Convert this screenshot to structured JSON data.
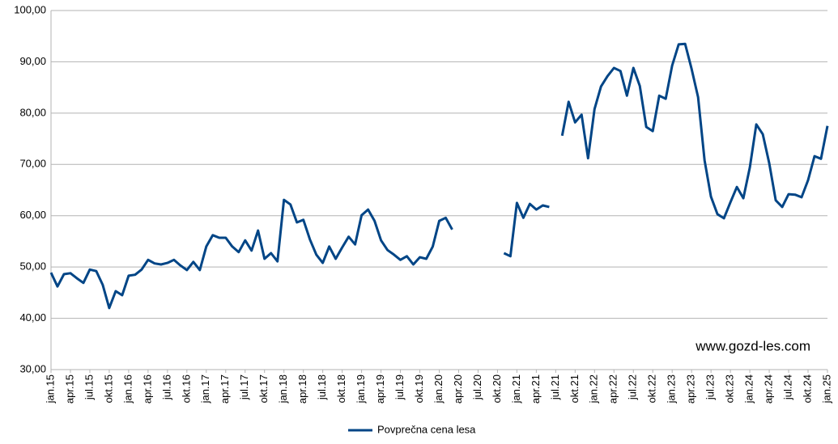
{
  "chart_data": {
    "type": "line",
    "annotations": [
      "www.gozd-les.com"
    ],
    "categories": [
      "jan.15",
      null,
      null,
      "apr.15",
      null,
      null,
      "jul.15",
      null,
      null,
      "okt.15",
      null,
      null,
      "jan.16",
      null,
      null,
      "apr.16",
      null,
      null,
      "jul.16",
      null,
      null,
      "okt.16",
      null,
      null,
      "jan.17",
      null,
      null,
      "apr.17",
      null,
      null,
      "jul.17",
      null,
      null,
      "okt.17",
      null,
      null,
      "jan.18",
      null,
      null,
      "apr.18",
      null,
      null,
      "jul.18",
      null,
      null,
      "okt.18",
      null,
      null,
      "jan.19",
      null,
      null,
      "apr.19",
      null,
      null,
      "jul.19",
      null,
      null,
      "okt.19",
      null,
      null,
      "jan.20",
      null,
      null,
      "apr.20",
      null,
      null,
      "jul.20",
      null,
      null,
      "okt.20",
      null,
      null,
      "jan.21",
      null,
      null,
      "apr.21",
      null,
      null,
      "jul.21",
      null,
      null,
      "okt.21",
      null,
      null,
      "jan.22",
      null,
      null,
      "apr.22",
      null,
      null,
      "jul.22",
      null,
      null,
      "okt.22",
      null,
      null,
      "jan.23",
      null,
      null,
      "apr.23",
      null,
      null,
      "jul.23",
      null,
      null,
      "okt.23",
      null,
      null,
      "jan.24",
      null,
      null,
      "apr.24",
      null,
      null,
      "jul.24",
      null,
      null,
      "okt.24",
      null,
      null,
      "jan.25"
    ],
    "series": [
      {
        "name": "Povprečna cena lesa",
        "color": "#004586",
        "values": [
          48.9,
          46.2,
          48.6,
          48.8,
          47.8,
          46.9,
          49.5,
          49.2,
          46.5,
          42.0,
          45.3,
          44.5,
          48.3,
          48.5,
          49.5,
          51.4,
          50.7,
          50.5,
          50.8,
          51.4,
          50.3,
          49.4,
          51.0,
          49.4,
          54.0,
          56.2,
          55.7,
          55.7,
          54.0,
          52.9,
          55.2,
          53.2,
          57.1,
          51.6,
          52.7,
          51.1,
          63.1,
          62.2,
          58.7,
          59.2,
          55.4,
          52.4,
          50.8,
          54.0,
          51.6,
          53.8,
          55.9,
          54.4,
          60.1,
          61.2,
          59.0,
          55.2,
          53.3,
          52.4,
          51.4,
          52.1,
          50.5,
          51.9,
          51.6,
          54.0,
          59.0,
          59.6,
          57.3,
          null,
          null,
          null,
          null,
          null,
          null,
          null,
          52.7,
          52.1,
          62.5,
          59.6,
          62.3,
          61.2,
          62.0,
          61.7,
          null,
          75.6,
          82.2,
          78.2,
          79.7,
          71.2,
          80.8,
          85.2,
          87.2,
          88.8,
          88.2,
          83.4,
          88.8,
          85.3,
          77.3,
          76.5,
          83.4,
          82.8,
          89.3,
          93.4,
          93.5,
          88.6,
          83.1,
          70.8,
          63.7,
          60.3,
          59.5,
          62.6,
          65.6,
          63.4,
          69.4,
          77.8,
          75.9,
          70.2,
          63.0,
          61.7,
          64.2,
          64.1,
          63.6,
          66.9,
          71.6,
          71.1,
          77.5
        ]
      }
    ],
    "ylim": [
      30,
      100
    ],
    "yticks": [
      {
        "value": 30,
        "label": "30,00"
      },
      {
        "value": 40,
        "label": "40,00"
      },
      {
        "value": 50,
        "label": "50,00"
      },
      {
        "value": 60,
        "label": "60,00"
      },
      {
        "value": 70,
        "label": "70,00"
      },
      {
        "value": 80,
        "label": "80,00"
      },
      {
        "value": 90,
        "label": "90,00"
      },
      {
        "value": 100,
        "label": "100,00"
      }
    ],
    "grid": true,
    "legend": "bottom"
  }
}
